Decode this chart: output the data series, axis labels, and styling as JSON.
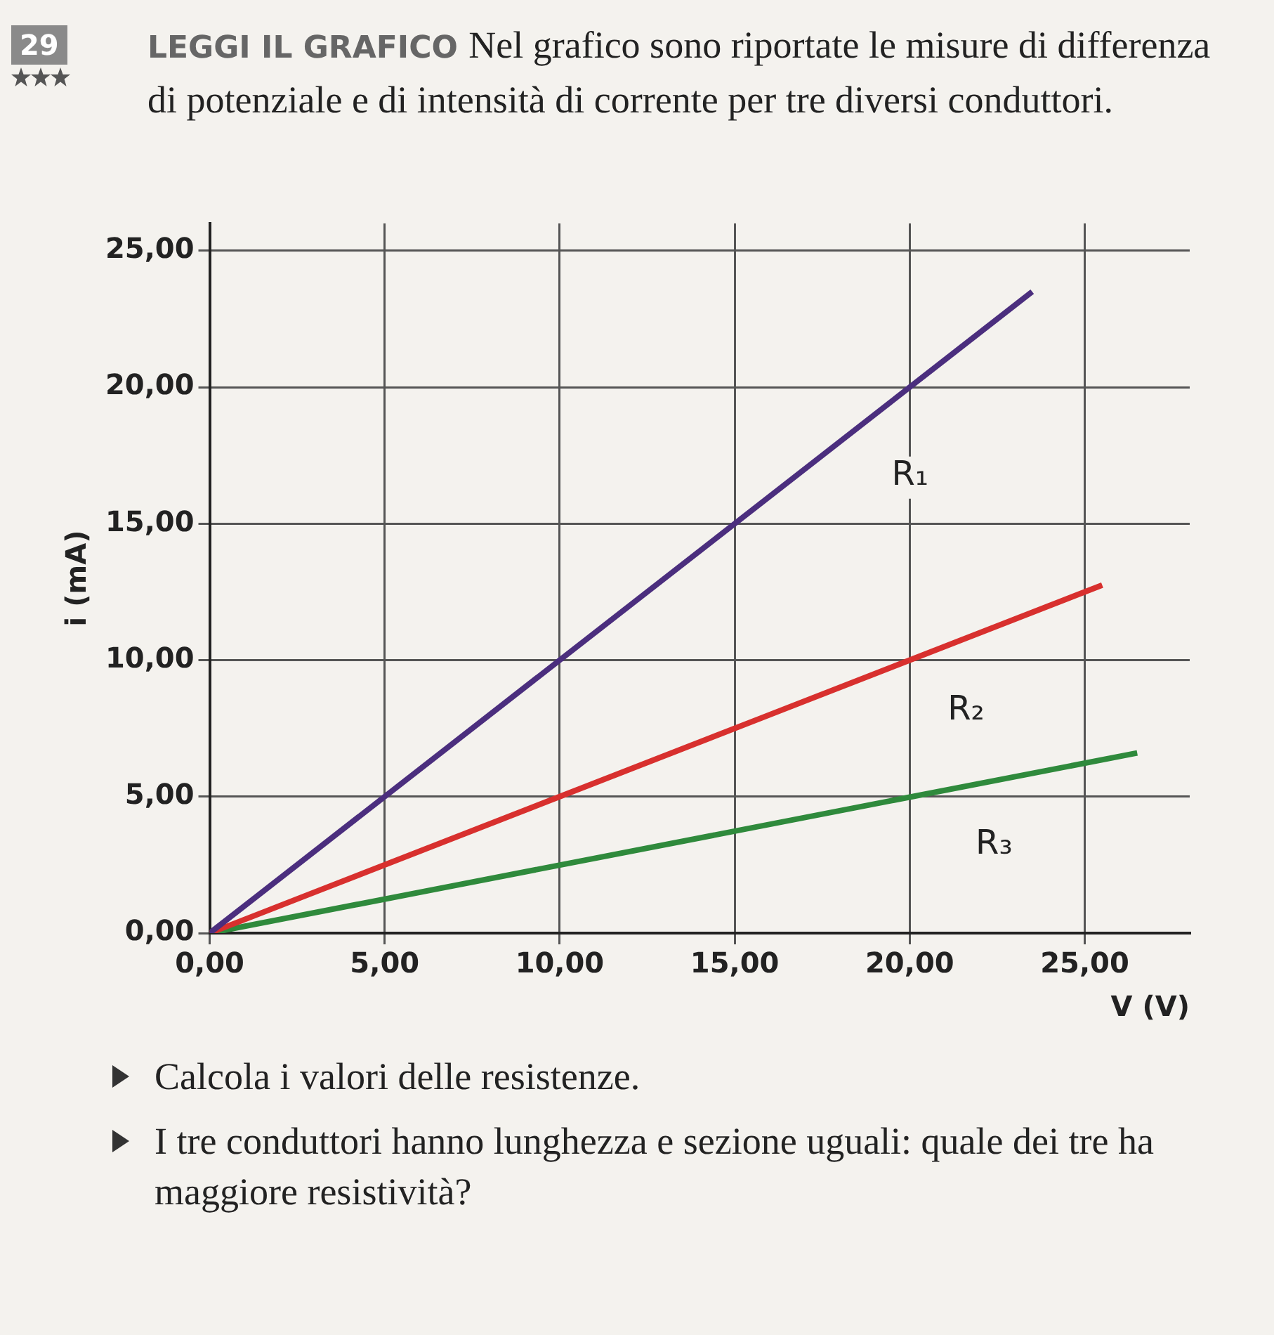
{
  "chart_data": {
    "type": "line",
    "title": "LEGGI IL GRAFICO Nel grafico sono riportate le misure di differenza di potenziale e di intensità di corrente per tre diversi conduttori.",
    "xlabel": "V (V)",
    "ylabel": "i (mA)",
    "annotations": [
      "29",
      "Calcola i valori delle resistenze.",
      "I tre conduttori hanno lunghezza e sezione uguali: quale dei tre ha maggiore resistività?"
    ],
    "series": [
      {
        "name": "R₁",
        "color": "#4b2e7e",
        "x": [
          0,
          23.5
        ],
        "values": [
          0,
          23.5
        ]
      },
      {
        "name": "R₂",
        "color": "#d8302e",
        "x": [
          0,
          25.5
        ],
        "values": [
          0,
          12.75
        ]
      },
      {
        "name": "R₃",
        "color": "#2f8a3c",
        "x": [
          0,
          26.5
        ],
        "values": [
          0,
          6.6
        ]
      }
    ],
    "xlim": [
      0,
      28
    ],
    "ylim": [
      0,
      26
    ],
    "xticks": [
      {
        "value": 0,
        "label": "0,00"
      },
      {
        "value": 5,
        "label": "5,00"
      },
      {
        "value": 10,
        "label": "10,00"
      },
      {
        "value": 15,
        "label": "15,00"
      },
      {
        "value": 20,
        "label": "20,00"
      },
      {
        "value": 25,
        "label": "25,00"
      }
    ],
    "yticks": [
      {
        "value": 0,
        "label": "0,00"
      },
      {
        "value": 5,
        "label": "5,00"
      },
      {
        "value": 10,
        "label": "10,00"
      },
      {
        "value": 15,
        "label": "15,00"
      },
      {
        "value": 20,
        "label": "20,00"
      },
      {
        "value": 25,
        "label": "25,00"
      }
    ],
    "grid": true,
    "legend": false,
    "marker": "none",
    "line_style": "solid"
  }
}
